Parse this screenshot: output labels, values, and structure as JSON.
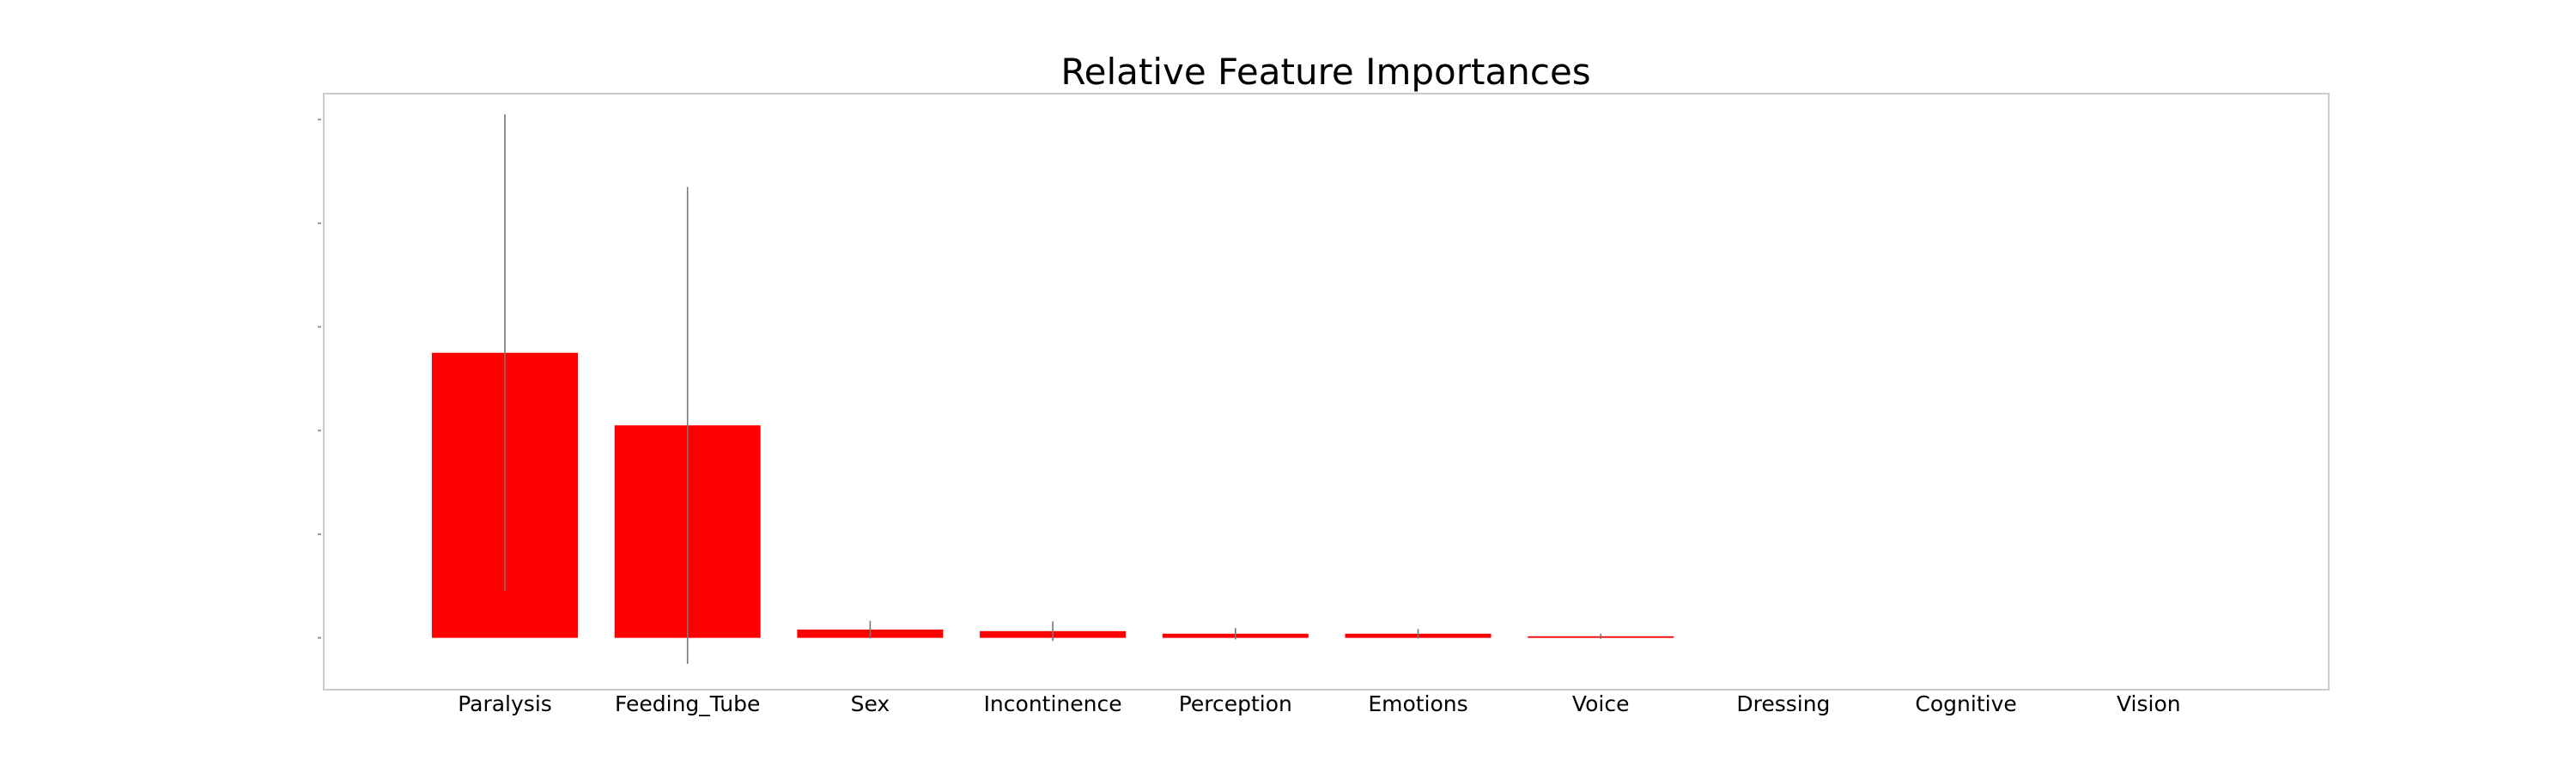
{
  "chart_data": {
    "type": "bar",
    "title": "Relative Feature Importances",
    "xlabel": "",
    "ylabel": "",
    "categories": [
      "Paralysis",
      "Feeding_Tube",
      "Sex",
      "Incontinence",
      "Perception",
      "Emotions",
      "Voice",
      "Dressing",
      "Cognitive",
      "Vision"
    ],
    "values": [
      0.55,
      0.41,
      0.016,
      0.013,
      0.008,
      0.008,
      0.003,
      0.0,
      0.0,
      0.0
    ],
    "errors": [
      0.46,
      0.46,
      0.017,
      0.019,
      0.011,
      0.009,
      0.005,
      0.0,
      0.0,
      0.0
    ],
    "ylim": [
      -0.1,
      1.05
    ],
    "yticks": [
      0.0,
      0.2,
      0.4,
      0.6,
      0.8,
      1.0
    ],
    "ytick_labels_visible": false,
    "grid": false,
    "legend": "none",
    "bar_color": "#ff0000",
    "error_color": "#777777",
    "frame_color": "#cccccc"
  }
}
